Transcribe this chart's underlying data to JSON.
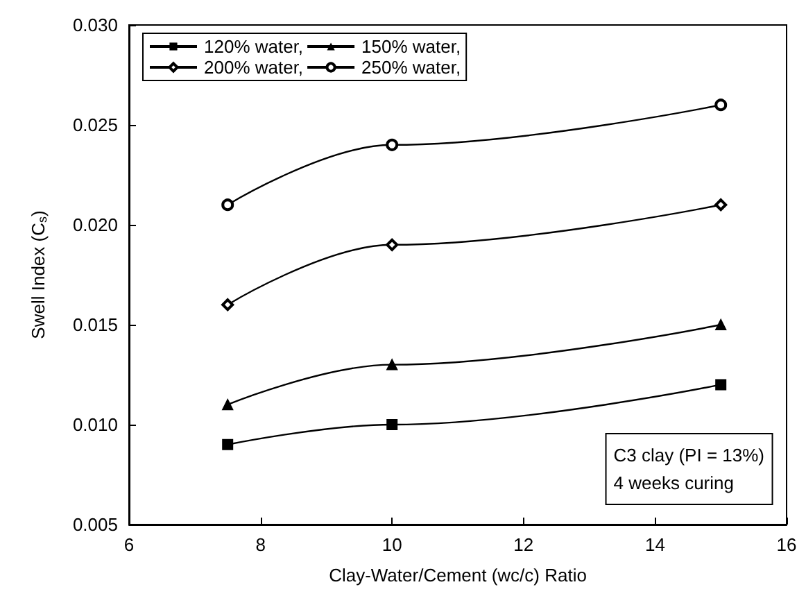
{
  "chart_data": {
    "type": "line",
    "xlabel": "Clay-Water/Cement (wc/c) Ratio",
    "ylabel": "Swell Index (C$_{s}$)",
    "x": [
      7.5,
      10,
      15
    ],
    "series": [
      {
        "name": "120% water,",
        "color": "#000000",
        "marker": "square",
        "values": [
          0.009,
          0.01,
          0.012
        ]
      },
      {
        "name": "150% water,",
        "color": "#000000",
        "marker": "triangle",
        "values": [
          0.011,
          0.013,
          0.015
        ]
      },
      {
        "name": "200% water,",
        "color": "#000000",
        "marker": "diamond",
        "values": [
          0.016,
          0.019,
          0.021
        ]
      },
      {
        "name": "250% water,",
        "color": "#000000",
        "marker": "circle",
        "values": [
          0.021,
          0.024,
          0.026
        ]
      }
    ],
    "xlim": [
      6,
      16
    ],
    "xticks": [
      6,
      8,
      10,
      12,
      14,
      16
    ],
    "ylim": [
      0.005,
      0.03
    ],
    "yticks": [
      {
        "value": 0.005,
        "label": "0.005"
      },
      {
        "value": 0.01,
        "label": "0.010"
      },
      {
        "value": 0.015,
        "label": "0.015"
      },
      {
        "value": 0.02,
        "label": "0.020"
      },
      {
        "value": 0.025,
        "label": "0.025"
      },
      {
        "value": 0.03,
        "label": "0.030"
      }
    ],
    "annotations": [
      "C3 clay (PI = 13%)\n4 weeks curing"
    ],
    "legend": "top left",
    "grid": false,
    "line_style": "solid"
  }
}
